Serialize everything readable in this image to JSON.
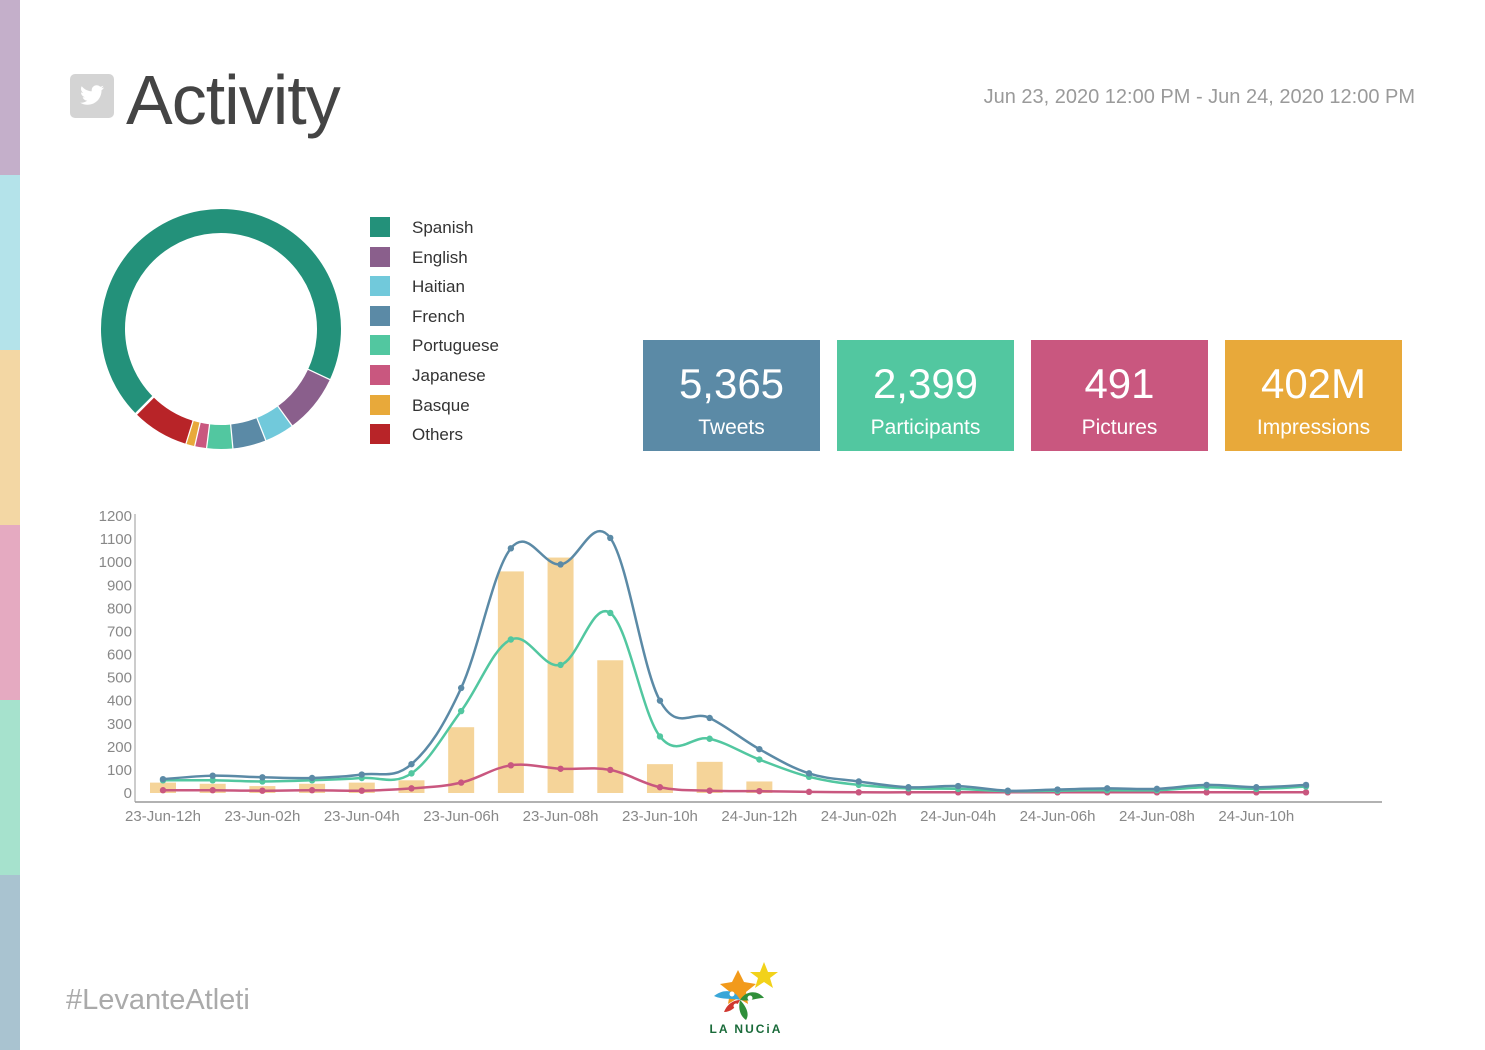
{
  "header": {
    "title": "Activity",
    "date_range": "Jun 23, 2020 12:00 PM - Jun 24, 2020 12:00 PM",
    "icon": "twitter-icon"
  },
  "side_stripe_colors": [
    "#c4afca",
    "#b4e3ea",
    "#f3d7a4",
    "#e5aac1",
    "#a6e2cd",
    "#a9c3d0"
  ],
  "stats": [
    {
      "value": "5,365",
      "label": "Tweets",
      "color": "#5b8aa6"
    },
    {
      "value": "2,399",
      "label": "Participants",
      "color": "#52c7a0"
    },
    {
      "value": "491",
      "label": "Pictures",
      "color": "#c9577f"
    },
    {
      "value": "402M",
      "label": "Impressions",
      "color": "#e8a93a"
    }
  ],
  "footer": {
    "hashtag": "#LevanteAtleti",
    "logo_text": "LA NUCiA"
  },
  "chart_data": [
    {
      "type": "pie",
      "variant": "donut",
      "legend_position": "right",
      "labels": [
        "Spanish",
        "English",
        "Haitian",
        "French",
        "Portuguese",
        "Japanese",
        "Basque",
        "Others"
      ],
      "values": [
        69.5,
        8.0,
        4.0,
        4.5,
        3.5,
        1.6,
        1.2,
        7.7
      ],
      "colors": [
        "#23917a",
        "#8a5f8c",
        "#71c9db",
        "#5b8aa6",
        "#52c7a0",
        "#c9577f",
        "#e8a93a",
        "#b82428"
      ]
    },
    {
      "type": "line",
      "bars_overlay": true,
      "x": [
        "23-Jun-12h",
        "23-Jun-01h",
        "23-Jun-02h",
        "23-Jun-03h",
        "23-Jun-04h",
        "23-Jun-05h",
        "23-Jun-06h",
        "23-Jun-07h",
        "23-Jun-08h",
        "23-Jun-09h",
        "23-Jun-10h",
        "23-Jun-11h",
        "24-Jun-12h",
        "24-Jun-01h",
        "24-Jun-02h",
        "24-Jun-03h",
        "24-Jun-04h",
        "24-Jun-05h",
        "24-Jun-06h",
        "24-Jun-07h",
        "24-Jun-08h",
        "24-Jun-09h",
        "24-Jun-10h",
        "24-Jun-11h"
      ],
      "x_tick_labels": [
        "23-Jun-12h",
        "23-Jun-02h",
        "23-Jun-04h",
        "23-Jun-06h",
        "23-Jun-08h",
        "23-Jun-10h",
        "24-Jun-12h",
        "24-Jun-02h",
        "24-Jun-04h",
        "24-Jun-06h",
        "24-Jun-08h",
        "24-Jun-10h"
      ],
      "ylim": [
        0,
        1200
      ],
      "y_ticks": [
        0,
        100,
        200,
        300,
        400,
        500,
        600,
        700,
        800,
        900,
        1000,
        1100,
        1200
      ],
      "grid": false,
      "bar_color": "#f5d499",
      "bars": [
        45,
        40,
        30,
        40,
        45,
        55,
        285,
        960,
        1020,
        575,
        125,
        135,
        50,
        0,
        0,
        0,
        0,
        0,
        0,
        0,
        0,
        0,
        0,
        0
      ],
      "series": [
        {
          "color": "#5b8aa6",
          "values": [
            60,
            75,
            68,
            65,
            80,
            125,
            455,
            1060,
            990,
            1105,
            400,
            325,
            190,
            85,
            50,
            25,
            30,
            10,
            15,
            20,
            18,
            35,
            25,
            35
          ]
        },
        {
          "color": "#52c7a0",
          "values": [
            55,
            55,
            50,
            55,
            65,
            85,
            355,
            665,
            555,
            780,
            245,
            235,
            145,
            70,
            35,
            20,
            18,
            8,
            10,
            12,
            12,
            25,
            18,
            28
          ]
        },
        {
          "color": "#c9577f",
          "values": [
            12,
            12,
            10,
            12,
            10,
            20,
            45,
            120,
            105,
            100,
            25,
            10,
            8,
            5,
            3,
            3,
            3,
            3,
            3,
            3,
            3,
            3,
            3,
            3
          ]
        }
      ]
    }
  ]
}
